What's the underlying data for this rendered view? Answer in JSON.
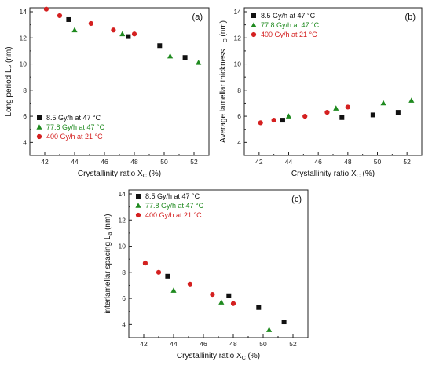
{
  "chart_data": [
    {
      "type": "scatter",
      "panel_label": "(a)",
      "xlabel": "Crystallinity ratio X",
      "xlabel_sub": "C",
      "xlabel_suffix": " (%)",
      "ylabel": "Long period L",
      "ylabel_sub": "P",
      "ylabel_suffix": " (nm)",
      "xlim": [
        41,
        53
      ],
      "ylim": [
        3,
        14.3
      ],
      "xticks": [
        42,
        44,
        46,
        48,
        50,
        52
      ],
      "yticks": [
        4,
        6,
        8,
        10,
        12,
        14
      ],
      "legend_position": "bottom-left",
      "series": [
        {
          "name": "8.5 Gy/h at 47 °C",
          "marker": "square",
          "color": "#111111",
          "x": [
            43.6,
            47.6,
            49.7,
            51.4
          ],
          "y": [
            13.4,
            12.1,
            11.4,
            10.5
          ]
        },
        {
          "name": "77.8 Gy/h at 47 °C",
          "marker": "triangle",
          "color": "#1f8a1f",
          "x": [
            44.0,
            47.2,
            50.4,
            52.3
          ],
          "y": [
            12.6,
            12.3,
            10.6,
            10.1
          ]
        },
        {
          "name": "400 Gy/h at 21 °C",
          "marker": "circle",
          "color": "#d42020",
          "x": [
            42.1,
            43.0,
            45.1,
            46.6,
            48.0
          ],
          "y": [
            14.2,
            13.7,
            13.1,
            12.6,
            12.3
          ]
        }
      ]
    },
    {
      "type": "scatter",
      "panel_label": "(b)",
      "xlabel": "Crystallinity ratio X",
      "xlabel_sub": "C",
      "xlabel_suffix": " (%)",
      "ylabel": "Average lamellar thickness L",
      "ylabel_sub": "C",
      "ylabel_suffix": " (nm)",
      "xlim": [
        41,
        53
      ],
      "ylim": [
        3,
        14.3
      ],
      "xticks": [
        42,
        44,
        46,
        48,
        50,
        52
      ],
      "yticks": [
        4,
        6,
        8,
        10,
        12,
        14
      ],
      "legend_position": "top-left",
      "series": [
        {
          "name": "8.5 Gy/h at 47 °C",
          "marker": "square",
          "color": "#111111",
          "x": [
            43.6,
            47.6,
            49.7,
            51.4
          ],
          "y": [
            5.7,
            5.9,
            6.1,
            6.3
          ]
        },
        {
          "name": "77.8 Gy/h at 47 °C",
          "marker": "triangle",
          "color": "#1f8a1f",
          "x": [
            44.0,
            47.2,
            50.4,
            52.3
          ],
          "y": [
            6.0,
            6.6,
            7.0,
            7.2
          ]
        },
        {
          "name": "400 Gy/h at 21 °C",
          "marker": "circle",
          "color": "#d42020",
          "x": [
            42.1,
            43.0,
            45.1,
            46.6,
            48.0
          ],
          "y": [
            5.5,
            5.7,
            6.0,
            6.3,
            6.7
          ]
        }
      ]
    },
    {
      "type": "scatter",
      "panel_label": "(c)",
      "xlabel": "Crystallinity ratio X",
      "xlabel_sub": "C",
      "xlabel_suffix": " (%)",
      "ylabel": "interlamellar spacing L",
      "ylabel_sub": "a",
      "ylabel_suffix": " (nm)",
      "xlim": [
        41,
        53
      ],
      "ylim": [
        3,
        14.3
      ],
      "xticks": [
        42,
        44,
        46,
        48,
        50,
        52
      ],
      "yticks": [
        4,
        6,
        8,
        10,
        12,
        14
      ],
      "legend_position": "top-left",
      "series": [
        {
          "name": "8.5 Gy/h at 47 °C",
          "marker": "square",
          "color": "#111111",
          "x": [
            43.6,
            47.7,
            49.7,
            51.4
          ],
          "y": [
            7.7,
            6.2,
            5.3,
            4.2
          ]
        },
        {
          "name": "77.8 Gy/h at 47 °C",
          "marker": "triangle",
          "color": "#1f8a1f",
          "x": [
            42.1,
            44.0,
            47.2,
            50.4
          ],
          "y": [
            8.7,
            6.6,
            5.7,
            3.6
          ]
        },
        {
          "name": "400 Gy/h at 21 °C",
          "marker": "circle",
          "color": "#d42020",
          "x": [
            42.1,
            43.0,
            45.1,
            46.6,
            48.0
          ],
          "y": [
            8.7,
            8.0,
            7.1,
            6.3,
            5.6
          ]
        }
      ]
    }
  ]
}
